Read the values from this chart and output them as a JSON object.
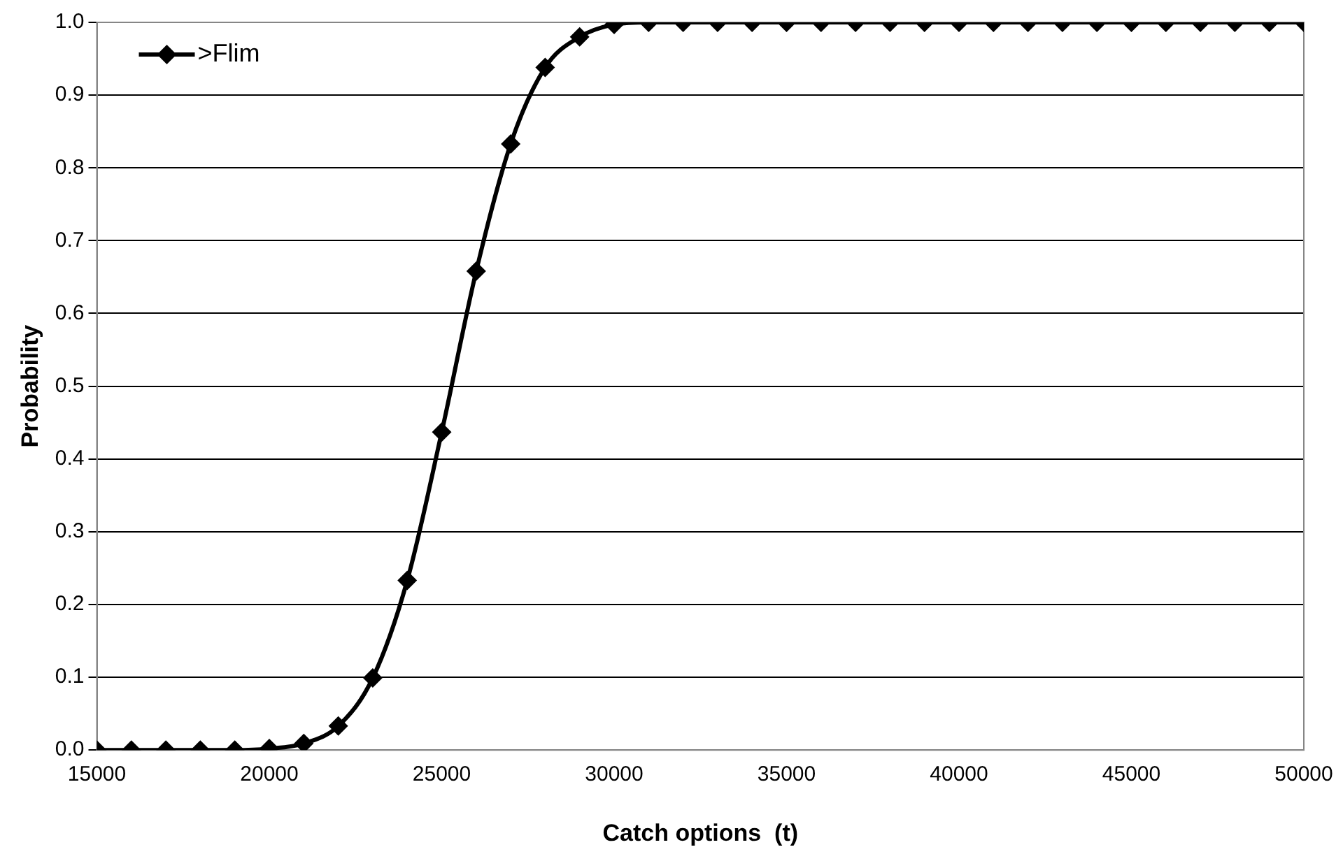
{
  "chart_data": {
    "type": "line",
    "xlabel": "Catch options  (t)",
    "ylabel": "Probability",
    "x": [
      15000,
      16000,
      17000,
      18000,
      19000,
      20000,
      21000,
      22000,
      23000,
      24000,
      25000,
      26000,
      27000,
      28000,
      29000,
      30000,
      31000,
      32000,
      33000,
      34000,
      35000,
      36000,
      37000,
      38000,
      39000,
      40000,
      41000,
      42000,
      43000,
      44000,
      45000,
      46000,
      47000,
      48000,
      49000,
      50000
    ],
    "series": [
      {
        "name": ">Flim",
        "color": "#000000",
        "values": [
          0,
          0,
          0,
          0,
          0,
          0.002,
          0.009,
          0.033,
          0.099,
          0.233,
          0.437,
          0.658,
          0.833,
          0.938,
          0.98,
          0.997,
          1,
          1,
          1,
          1,
          1,
          1,
          1,
          1,
          1,
          1,
          1,
          1,
          1,
          1,
          1,
          1,
          1,
          1,
          1,
          1
        ]
      }
    ],
    "xlim": [
      15000,
      50000
    ],
    "xticks": [
      15000,
      20000,
      25000,
      30000,
      35000,
      40000,
      45000,
      50000
    ],
    "ylim": [
      0,
      1
    ],
    "yticks": [
      {
        "value": 0,
        "label": "0.0"
      },
      {
        "value": 0.1,
        "label": "0.1"
      },
      {
        "value": 0.2,
        "label": "0.2"
      },
      {
        "value": 0.3,
        "label": "0.3"
      },
      {
        "value": 0.4,
        "label": "0.4"
      },
      {
        "value": 0.5,
        "label": "0.5"
      },
      {
        "value": 0.6,
        "label": "0.6"
      },
      {
        "value": 0.7,
        "label": "0.7"
      },
      {
        "value": 0.8,
        "label": "0.8"
      },
      {
        "value": 0.9,
        "label": "0.9"
      },
      {
        "value": 1,
        "label": "1.0"
      }
    ],
    "grid": "y",
    "legend": "top left",
    "marker": "diamond",
    "line_style": "solid"
  }
}
